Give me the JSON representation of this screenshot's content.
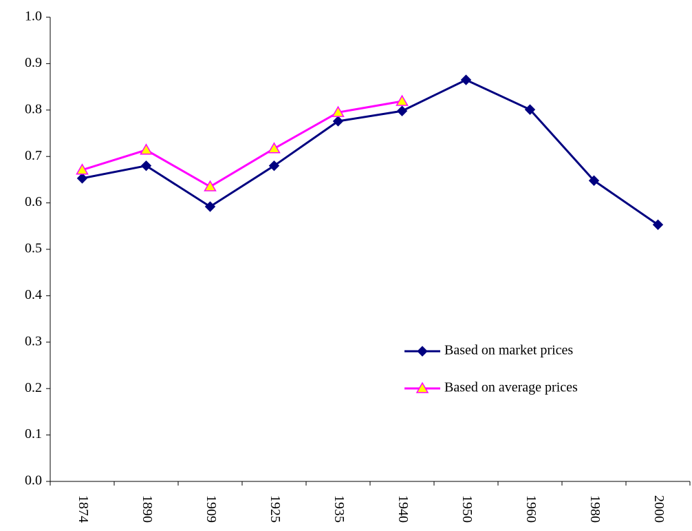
{
  "chart_data": {
    "type": "line",
    "categories": [
      "1874",
      "1890",
      "1909",
      "1925",
      "1935",
      "1940",
      "1950",
      "1960",
      "1980",
      "2000"
    ],
    "series": [
      {
        "name": "Based on market prices",
        "color": "#000080",
        "marker": "diamond",
        "marker_fill": "#000080",
        "values": [
          0.653,
          0.68,
          0.592,
          0.68,
          0.776,
          0.798,
          0.865,
          0.801,
          0.648,
          0.553
        ]
      },
      {
        "name": "Based on average prices",
        "color": "#ff00ff",
        "marker": "triangle",
        "marker_fill": "#ffff00",
        "values": [
          0.671,
          0.714,
          0.635,
          0.717,
          0.795,
          0.819,
          null,
          null,
          null,
          null
        ]
      }
    ],
    "ylim": [
      0,
      1
    ],
    "yticks": [
      {
        "value": 0,
        "label": "0.0"
      },
      0.1,
      0.2,
      0.3,
      0.4,
      0.5,
      0.6,
      0.7,
      0.8,
      0.9,
      {
        "value": 1,
        "label": "1.0"
      }
    ],
    "grid": false,
    "legend": "right"
  }
}
